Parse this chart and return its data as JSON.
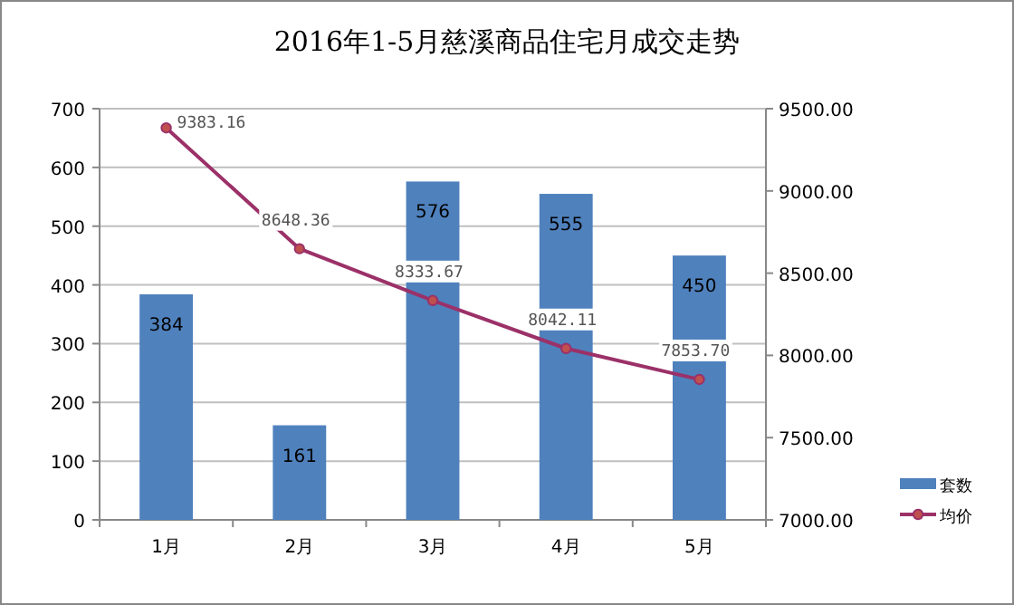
{
  "chart_data": {
    "type": "bar",
    "title": "2016年1-5月慈溪商品住宅月成交走势",
    "categories": [
      "1月",
      "2月",
      "3月",
      "4月",
      "5月"
    ],
    "series": [
      {
        "name": "套数",
        "color": "#4f81bd",
        "values": [
          384,
          161,
          576,
          555,
          450
        ],
        "value_labels": [
          "384",
          "161",
          "576",
          "555",
          "450"
        ]
      },
      {
        "name": "均价",
        "type": "line",
        "axis": "y2",
        "color": "#9b3168",
        "marker": "circle",
        "values": [
          9383.16,
          8648.36,
          8333.67,
          8042.11,
          7853.7
        ],
        "value_labels": [
          "9383.16",
          "8648.36",
          "8333.67",
          "8042.11",
          "7853.70"
        ]
      }
    ],
    "ylim": [
      0,
      700
    ],
    "yticks": [
      0,
      100,
      200,
      300,
      400,
      500,
      600,
      700
    ],
    "y2lim": [
      7000,
      9500
    ],
    "y2ticks": [
      {
        "value": 7000,
        "label": "7000.00"
      },
      {
        "value": 7500,
        "label": "7500.00"
      },
      {
        "value": 8000,
        "label": "8000.00"
      },
      {
        "value": 8500,
        "label": "8500.00"
      },
      {
        "value": 9000,
        "label": "9000.00"
      },
      {
        "value": 9500,
        "label": "9500.00"
      }
    ],
    "grid": "y",
    "legend": "right"
  }
}
